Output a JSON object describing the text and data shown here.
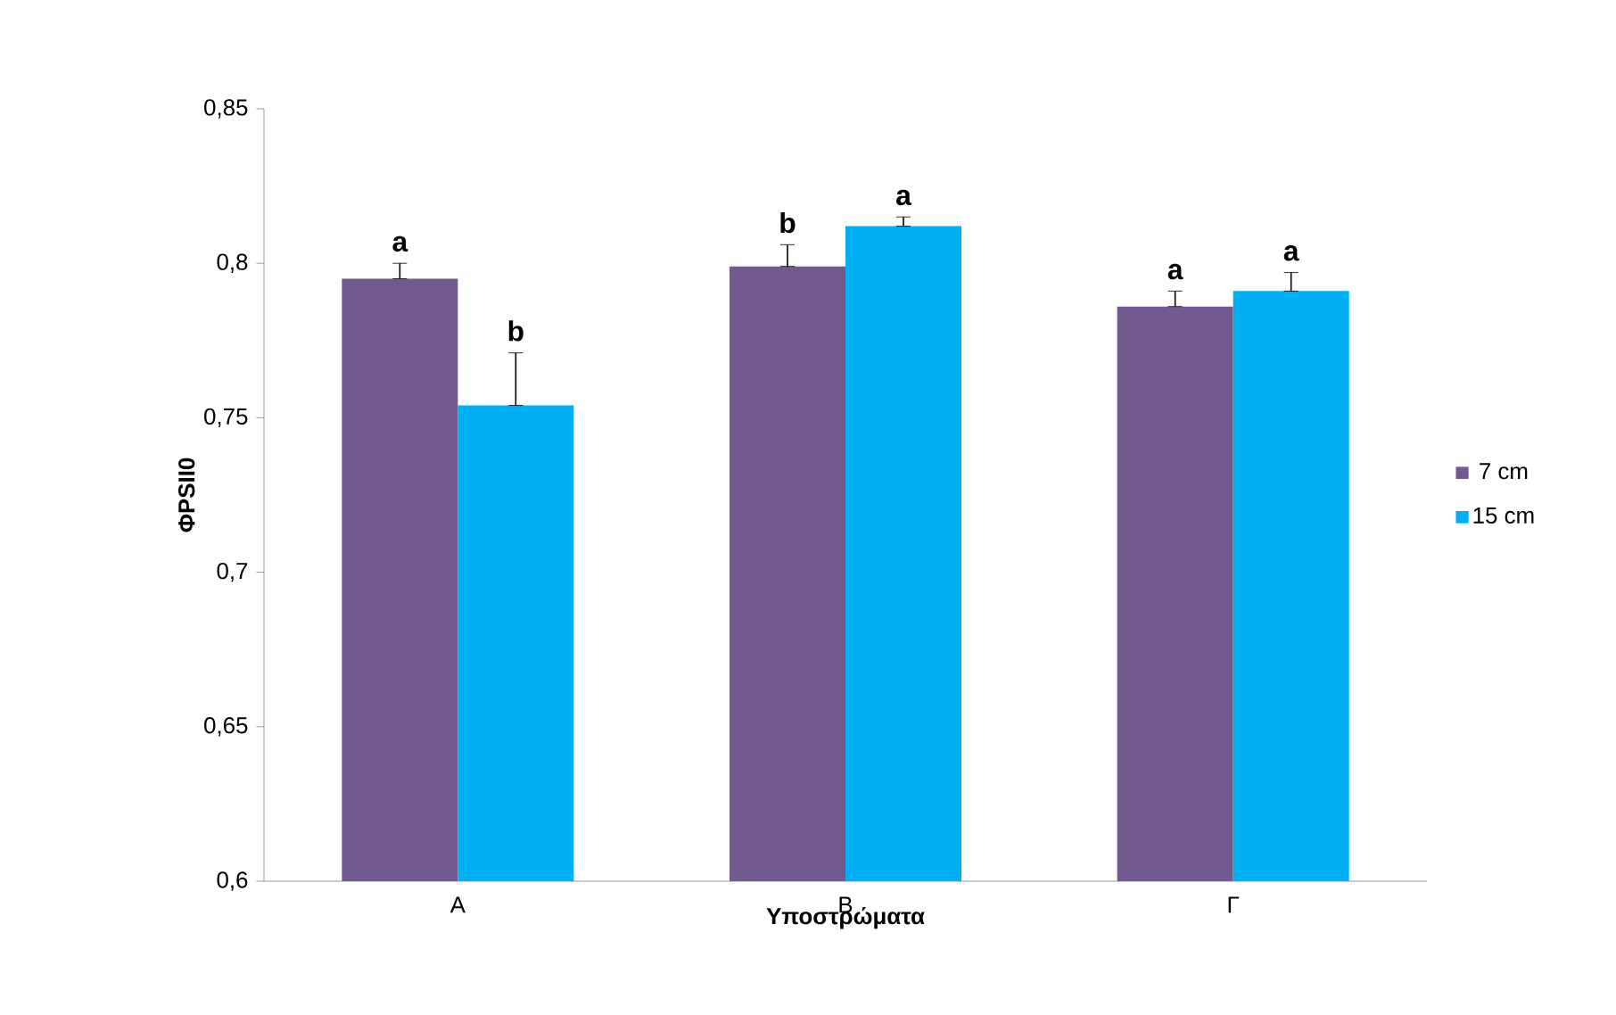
{
  "chart_data": {
    "type": "bar",
    "xlabel": "Υποστρώματα",
    "ylabel": "ΦPSII0",
    "categories": [
      "Α",
      "Β",
      "Γ"
    ],
    "series": [
      {
        "name": "7 cm",
        "color": "#725990",
        "values": [
          0.795,
          0.799,
          0.786
        ],
        "errors": [
          [
            0.795,
            0.8
          ],
          [
            0.799,
            0.806
          ],
          [
            0.786,
            0.791
          ]
        ]
      },
      {
        "name": "15 cm",
        "color": "#00b0f0",
        "values": [
          0.754,
          0.812,
          0.791
        ],
        "errors": [
          [
            0.754,
            0.771
          ],
          [
            0.812,
            0.815
          ],
          [
            0.791,
            0.797
          ]
        ]
      }
    ],
    "ylim": [
      0.6,
      0.85
    ],
    "yticks": [
      {
        "value": 0.6,
        "label": "0,6"
      },
      {
        "value": 0.65,
        "label": "0,65"
      },
      {
        "value": 0.7,
        "label": "0,7"
      },
      {
        "value": 0.75,
        "label": "0,75"
      },
      {
        "value": 0.8,
        "label": "0,8"
      },
      {
        "value": 0.85,
        "label": "0,85"
      }
    ],
    "annotations": [
      "a",
      "b",
      "b",
      "a",
      "a",
      "a"
    ],
    "legend": "right",
    "grid": false
  }
}
